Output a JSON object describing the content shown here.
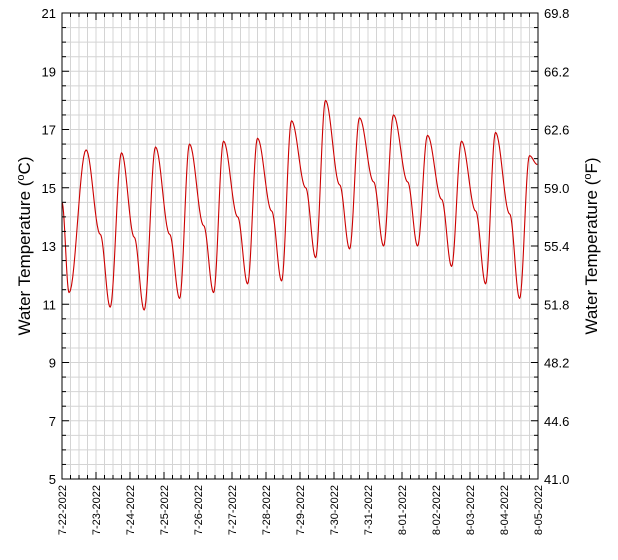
{
  "chart_data": {
    "type": "line",
    "title": "",
    "ylabel_left": {
      "main": "Water Temperature (",
      "sup": "o",
      "unit": "C)"
    },
    "ylabel_right": {
      "main": "Water Temperature (",
      "sup": "o",
      "unit": "F)"
    },
    "xlabel": "",
    "ylim_left": [
      5,
      21
    ],
    "ylim_right": [
      41.0,
      69.8
    ],
    "left_ticks": [
      "5",
      "7",
      "9",
      "11",
      "13",
      "15",
      "17",
      "19",
      "21"
    ],
    "right_ticks": [
      "41.0",
      "44.6",
      "48.2",
      "51.8",
      "55.4",
      "59.0",
      "62.6",
      "66.2",
      "69.8"
    ],
    "x_tick_labels": [
      "7-22-2022",
      "7-23-2022",
      "7-24-2022",
      "7-25-2022",
      "7-26-2022",
      "7-27-2022",
      "7-28-2022",
      "7-29-2022",
      "7-30-2022",
      "7-31-2022",
      "8-01-2022",
      "8-02-2022",
      "8-03-2022",
      "8-04-2022",
      "8-05-2022"
    ],
    "x_range_days": [
      0,
      14
    ],
    "grid": true,
    "line_color": "#cc0000",
    "daily_extremes": [
      {
        "day": "7-22-2022",
        "min": 11.4,
        "max": 16.3
      },
      {
        "day": "7-23-2022",
        "min": 10.9,
        "max": 16.2
      },
      {
        "day": "7-24-2022",
        "min": 10.8,
        "max": 16.4
      },
      {
        "day": "7-25-2022",
        "min": 11.2,
        "max": 16.5
      },
      {
        "day": "7-26-2022",
        "min": 11.4,
        "max": 16.6
      },
      {
        "day": "7-27-2022",
        "min": 11.7,
        "max": 16.7
      },
      {
        "day": "7-28-2022",
        "min": 11.8,
        "max": 17.3
      },
      {
        "day": "7-29-2022",
        "min": 12.6,
        "max": 18.0
      },
      {
        "day": "7-30-2022",
        "min": 12.9,
        "max": 17.4
      },
      {
        "day": "7-31-2022",
        "min": 13.0,
        "max": 17.5
      },
      {
        "day": "8-01-2022",
        "min": 13.0,
        "max": 16.8
      },
      {
        "day": "8-02-2022",
        "min": 12.3,
        "max": 16.6
      },
      {
        "day": "8-03-2022",
        "min": 11.7,
        "max": 16.9
      },
      {
        "day": "8-04-2022",
        "min": 11.2,
        "max": 16.1
      }
    ],
    "series": [
      {
        "x": [
          "7-22-2022 00:00",
          "7-22-2022 05:00",
          "7-22-2022 17:00",
          "7-23-2022 03:00",
          "7-23-2022 10:00",
          "7-23-2022 18:00",
          "7-24-2022 03:00",
          "7-24-2022 10:00",
          "7-24-2022 18:00",
          "7-25-2022 04:00",
          "7-25-2022 11:00",
          "7-25-2022 18:00",
          "7-26-2022 04:00",
          "7-26-2022 11:00",
          "7-26-2022 18:00",
          "7-27-2022 04:00",
          "7-27-2022 11:00",
          "7-27-2022 18:00",
          "7-28-2022 04:00",
          "7-28-2022 11:00",
          "7-28-2022 18:00",
          "7-29-2022 04:00",
          "7-29-2022 11:00",
          "7-29-2022 18:00",
          "7-30-2022 04:00",
          "7-30-2022 11:00",
          "7-30-2022 18:00",
          "7-31-2022 04:00",
          "7-31-2022 11:00",
          "7-31-2022 18:00",
          "8-01-2022 04:00",
          "8-01-2022 11:00",
          "8-01-2022 18:00",
          "8-02-2022 04:00",
          "8-02-2022 11:00",
          "8-02-2022 18:00",
          "8-03-2022 04:00",
          "8-03-2022 11:00",
          "8-03-2022 18:00",
          "8-04-2022 04:00",
          "8-04-2022 11:00",
          "8-04-2022 18:00",
          "8-04-2022 23:30"
        ],
        "y": [
          14.5,
          11.4,
          16.3,
          13.4,
          10.9,
          16.2,
          13.3,
          10.8,
          16.4,
          13.4,
          11.2,
          16.5,
          13.7,
          11.4,
          16.6,
          14.0,
          11.7,
          16.7,
          14.2,
          11.8,
          17.3,
          15.0,
          12.6,
          18.0,
          15.1,
          12.9,
          17.4,
          15.2,
          13.0,
          17.5,
          15.2,
          13.0,
          16.8,
          14.6,
          12.3,
          16.6,
          14.2,
          11.7,
          16.9,
          14.1,
          11.2,
          16.1,
          15.8
        ]
      }
    ]
  }
}
